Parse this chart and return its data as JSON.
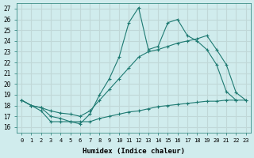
{
  "xlabel": "Humidex (Indice chaleur)",
  "bg_color": "#d0eced",
  "line_color": "#1e7a72",
  "grid_color": "#c0d8d8",
  "xlim": [
    -0.5,
    23.5
  ],
  "ylim": [
    15.5,
    27.5
  ],
  "yticks": [
    16,
    17,
    18,
    19,
    20,
    21,
    22,
    23,
    24,
    25,
    26,
    27
  ],
  "xticks": [
    0,
    1,
    2,
    3,
    4,
    5,
    6,
    7,
    8,
    9,
    10,
    11,
    12,
    13,
    14,
    15,
    16,
    17,
    18,
    19,
    20,
    21,
    22,
    23
  ],
  "line1_x": [
    0,
    1,
    2,
    3,
    4,
    5,
    6,
    7,
    8,
    9,
    10,
    11,
    12,
    13,
    14,
    15,
    16,
    17,
    18,
    19,
    20,
    21,
    22,
    23
  ],
  "line1_y": [
    18.5,
    18.0,
    17.5,
    16.5,
    16.5,
    16.5,
    16.5,
    16.5,
    16.8,
    17.0,
    17.2,
    17.4,
    17.5,
    17.7,
    17.9,
    18.0,
    18.1,
    18.2,
    18.3,
    18.4,
    18.4,
    18.5,
    18.5,
    18.5
  ],
  "line2_x": [
    0,
    1,
    2,
    3,
    4,
    5,
    6,
    7,
    8,
    9,
    10,
    11,
    12,
    13,
    14,
    15,
    16,
    17,
    18,
    19,
    20,
    21,
    22,
    23
  ],
  "line2_y": [
    18.5,
    18.0,
    17.8,
    17.5,
    17.3,
    17.2,
    17.0,
    17.5,
    18.5,
    19.5,
    20.5,
    21.5,
    22.5,
    23.0,
    23.2,
    23.5,
    23.8,
    24.0,
    24.2,
    24.5,
    23.2,
    21.8,
    19.2,
    18.5
  ],
  "line3_x": [
    0,
    1,
    2,
    3,
    4,
    5,
    6,
    7,
    8,
    9,
    10,
    11,
    12,
    13,
    14,
    15,
    16,
    17,
    18,
    19,
    20,
    21,
    22
  ],
  "line3_y": [
    18.5,
    18.0,
    17.8,
    17.0,
    16.8,
    16.5,
    16.3,
    17.2,
    19.0,
    20.5,
    22.5,
    25.7,
    27.1,
    23.2,
    23.5,
    25.7,
    26.0,
    24.5,
    24.0,
    23.2,
    21.8,
    19.3,
    18.5
  ]
}
